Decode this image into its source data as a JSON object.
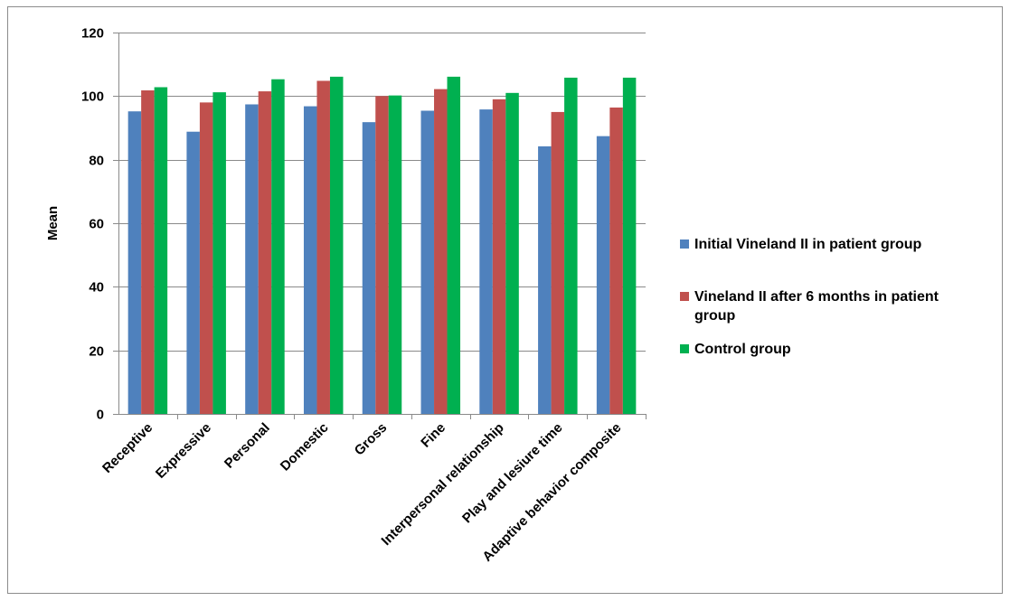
{
  "chart_data": {
    "type": "bar",
    "ylabel": "Mean",
    "xlabel": "",
    "ylim": [
      0,
      120
    ],
    "ytick_step": 20,
    "grid": true,
    "legend_position": "right",
    "categories": [
      "Receptive",
      "Expressive",
      "Personal",
      "Domestic",
      "Gross",
      "Fine",
      "Interpersonal relationship",
      "Play and lesiure time",
      "Adaptive behavior composite"
    ],
    "series": [
      {
        "name": "Initial Vineland II in patient group",
        "color": "#4f81bd",
        "values": [
          95.2,
          88.8,
          97.4,
          96.8,
          91.8,
          95.4,
          95.8,
          84.2,
          87.4
        ]
      },
      {
        "name": "Vineland II after 6 months in patient group",
        "color": "#c0504d",
        "values": [
          101.8,
          98.0,
          101.5,
          104.8,
          100.0,
          102.2,
          99.0,
          95.0,
          96.4
        ]
      },
      {
        "name": "Control group",
        "color": "#00b050",
        "values": [
          102.8,
          101.2,
          105.3,
          106.1,
          100.2,
          106.1,
          101.0,
          105.8,
          105.8
        ]
      }
    ]
  }
}
